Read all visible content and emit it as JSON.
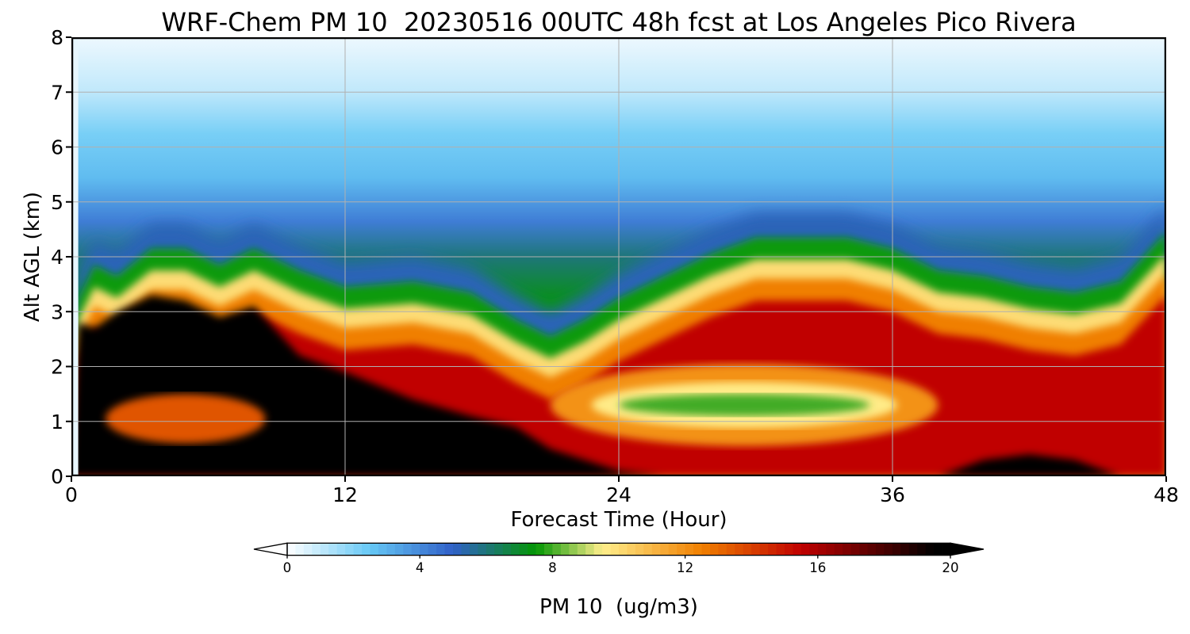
{
  "chart_data": {
    "type": "heatmap",
    "title": "WRF-Chem PM 10  20230516 00UTC 48h fcst at Los Angeles Pico Rivera",
    "xlabel": "Forecast Time (Hour)",
    "ylabel": "Alt AGL (km)",
    "xlim": [
      0,
      48
    ],
    "ylim": [
      0,
      8
    ],
    "xticks": [
      "0",
      "12",
      "24",
      "36",
      "48"
    ],
    "yticks": [
      "0",
      "1",
      "2",
      "3",
      "4",
      "5",
      "6",
      "7",
      "8"
    ],
    "grid": true,
    "colorbar": {
      "label": "PM 10  (ug/m3)",
      "min": 0,
      "max": 20,
      "ticks": [
        "0",
        "4",
        "8",
        "12",
        "16",
        "20"
      ],
      "extend": "both",
      "colormap_stops": [
        {
          "value": 0,
          "color": "#ffffff"
        },
        {
          "value": 2.5,
          "color": "#66c8f5"
        },
        {
          "value": 5,
          "color": "#3060c8"
        },
        {
          "value": 7.5,
          "color": "#039603"
        },
        {
          "value": 9.5,
          "color": "#ffef8c"
        },
        {
          "value": 12.5,
          "color": "#f07f00"
        },
        {
          "value": 15.5,
          "color": "#c00000"
        },
        {
          "value": 19.5,
          "color": "#000000"
        }
      ]
    },
    "series": [
      {
        "x": [
          0,
          0.3,
          1,
          2,
          3.5,
          5,
          6.5,
          8,
          10,
          12,
          15,
          17.5,
          19.5,
          21,
          22.5,
          24,
          26,
          28,
          30,
          32,
          34,
          36,
          38,
          40,
          42,
          44,
          46,
          48
        ],
        "boundary_8ugm3_km": [
          0,
          3.0,
          3.6,
          3.4,
          3.9,
          3.9,
          3.6,
          3.9,
          3.5,
          3.2,
          3.3,
          3.1,
          2.6,
          2.3,
          2.6,
          3.0,
          3.4,
          3.8,
          4.1,
          4.1,
          4.1,
          3.9,
          3.5,
          3.4,
          3.2,
          3.1,
          3.3,
          4.2
        ],
        "core_top_km": [
          0,
          2.8,
          2.7,
          3.0,
          3.3,
          3.2,
          2.9,
          3.1,
          2.2,
          1.9,
          1.4,
          1.1,
          0.9,
          0.5,
          0.3,
          0.1,
          0,
          0,
          0,
          0,
          0,
          0,
          0,
          0.3,
          0.4,
          0.3,
          0,
          0
        ],
        "surface_core_km": [
          0,
          0.6,
          0.6,
          0.6,
          0.5,
          0.5,
          0.5,
          0.5,
          0.4,
          0.6,
          0.9,
          1.0,
          0.9,
          0.5,
          0.3,
          0.1,
          0,
          0,
          0,
          0,
          0,
          0,
          0,
          0.3,
          0.4,
          0.3,
          0,
          0
        ]
      }
    ],
    "annotations": [
      {
        "name": "low-concentration layer",
        "x_range": [
          24,
          35
        ],
        "altitude_km": 1.3,
        "value": 8
      }
    ]
  }
}
